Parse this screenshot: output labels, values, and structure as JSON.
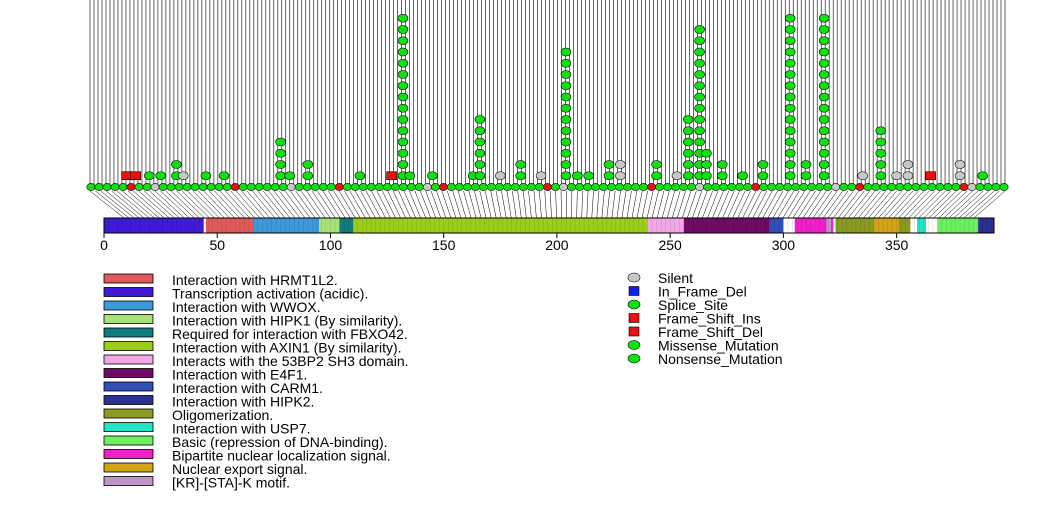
{
  "chart_data": {
    "type": "lollipop",
    "xlim": [
      0,
      393
    ],
    "x_ticks": [
      0,
      50,
      100,
      150,
      200,
      250,
      300,
      350
    ],
    "x_tick_labels": [
      "0",
      "50",
      "100",
      "150",
      "200",
      "250",
      "300",
      "350"
    ],
    "domains": [
      {
        "name": "Interaction with HRMT1L2.",
        "color": "#e05a5a",
        "start": 45,
        "end": 66
      },
      {
        "name": "Transcription activation (acidic).",
        "color": "#3f1bd6",
        "start": 0,
        "end": 44
      },
      {
        "name": "Interaction with WWOX.",
        "color": "#3d9ad8",
        "start": 66,
        "end": 95
      },
      {
        "name": "Interaction with HIPK1 (By similarity).",
        "color": "#a8e07a",
        "start": 95,
        "end": 104
      },
      {
        "name": "Required for interaction with FBXO42.",
        "color": "#127b7b",
        "start": 104,
        "end": 110
      },
      {
        "name": "Interaction with AXIN1 (By similarity).",
        "color": "#9ccd1a",
        "start": 110,
        "end": 240
      },
      {
        "name": "Interacts with the 53BP2 SH3 domain.",
        "color": "#f2a8e6",
        "start": 240,
        "end": 256
      },
      {
        "name": "Interaction with E4F1.",
        "color": "#700a64",
        "start": 256,
        "end": 294
      },
      {
        "name": "Interaction with CARM1.",
        "color": "#3050b8",
        "start": 294,
        "end": 300
      },
      {
        "name": "Interaction with HIPK2.",
        "color": "#2a3192",
        "start": 386,
        "end": 393
      },
      {
        "name": "Oligomerization.",
        "color": "#8a9a22",
        "start": 323,
        "end": 356
      },
      {
        "name": "Interaction with USP7.",
        "color": "#20e6c6",
        "start": 359,
        "end": 363
      },
      {
        "name": "Basic (repression of DNA-binding).",
        "color": "#6cf060",
        "start": 368,
        "end": 386
      },
      {
        "name": "Bipartite nuclear localization signal.",
        "color": "#f020c8",
        "start": 305,
        "end": 322
      },
      {
        "name": "Nuclear export signal.",
        "color": "#d4a418",
        "start": 340,
        "end": 351
      },
      {
        "name": "[KR]-[STA]-K motif.",
        "color": "#c094c8",
        "start": 319,
        "end": 321
      }
    ],
    "mutation_types": [
      {
        "name": "Silent",
        "color": "#c8c8c8",
        "shape": "circle"
      },
      {
        "name": "In_Frame_Del",
        "color": "#1020e8",
        "shape": "square"
      },
      {
        "name": "Splice_Site",
        "color": "#10e010",
        "shape": "circle"
      },
      {
        "name": "Frame_Shift_Ins",
        "color": "#e81010",
        "shape": "square"
      },
      {
        "name": "Frame_Shift_Del",
        "color": "#e81010",
        "shape": "square"
      },
      {
        "name": "Missense_Mutation",
        "color": "#10e010",
        "shape": "circle"
      },
      {
        "name": "Nonsense_Mutation",
        "color": "#10e010",
        "shape": "circle"
      }
    ],
    "mutations": [
      {
        "pos": 10,
        "count": 1,
        "type": "Frame_Shift_Del"
      },
      {
        "pos": 14,
        "count": 1,
        "type": "Frame_Shift_Del"
      },
      {
        "pos": 20,
        "count": 1,
        "type": "Missense_Mutation"
      },
      {
        "pos": 25,
        "count": 1,
        "type": "Missense_Mutation"
      },
      {
        "pos": 32,
        "count": 2,
        "type": "Missense_Mutation"
      },
      {
        "pos": 35,
        "count": 1,
        "type": "Silent"
      },
      {
        "pos": 45,
        "count": 1,
        "type": "Missense_Mutation"
      },
      {
        "pos": 53,
        "count": 1,
        "type": "Missense_Mutation"
      },
      {
        "pos": 78,
        "count": 4,
        "type": "Missense_Mutation"
      },
      {
        "pos": 82,
        "count": 1,
        "type": "Missense_Mutation"
      },
      {
        "pos": 90,
        "count": 2,
        "type": "Missense_Mutation"
      },
      {
        "pos": 113,
        "count": 1,
        "type": "Missense_Mutation"
      },
      {
        "pos": 127,
        "count": 1,
        "type": "Frame_Shift_Ins"
      },
      {
        "pos": 132,
        "count": 15,
        "type": "Missense_Mutation"
      },
      {
        "pos": 135,
        "count": 1,
        "type": "Missense_Mutation"
      },
      {
        "pos": 145,
        "count": 1,
        "type": "Missense_Mutation"
      },
      {
        "pos": 163,
        "count": 1,
        "type": "Missense_Mutation"
      },
      {
        "pos": 166,
        "count": 6,
        "type": "Missense_Mutation"
      },
      {
        "pos": 175,
        "count": 1,
        "type": "Silent"
      },
      {
        "pos": 184,
        "count": 2,
        "type": "Missense_Mutation"
      },
      {
        "pos": 193,
        "count": 1,
        "type": "Silent"
      },
      {
        "pos": 204,
        "count": 12,
        "type": "Missense_Mutation"
      },
      {
        "pos": 209,
        "count": 1,
        "type": "Missense_Mutation"
      },
      {
        "pos": 214,
        "count": 1,
        "type": "Missense_Mutation"
      },
      {
        "pos": 223,
        "count": 2,
        "type": "Missense_Mutation"
      },
      {
        "pos": 228,
        "count": 2,
        "type": "Silent"
      },
      {
        "pos": 244,
        "count": 2,
        "type": "Missense_Mutation"
      },
      {
        "pos": 253,
        "count": 1,
        "type": "Silent"
      },
      {
        "pos": 258,
        "count": 6,
        "type": "Missense_Mutation"
      },
      {
        "pos": 263,
        "count": 14,
        "type": "Missense_Mutation"
      },
      {
        "pos": 266,
        "count": 3,
        "type": "Missense_Mutation"
      },
      {
        "pos": 273,
        "count": 2,
        "type": "Missense_Mutation"
      },
      {
        "pos": 282,
        "count": 1,
        "type": "Missense_Mutation"
      },
      {
        "pos": 291,
        "count": 2,
        "type": "Missense_Mutation"
      },
      {
        "pos": 303,
        "count": 15,
        "type": "Missense_Mutation"
      },
      {
        "pos": 310,
        "count": 2,
        "type": "Missense_Mutation"
      },
      {
        "pos": 318,
        "count": 15,
        "type": "Missense_Mutation"
      },
      {
        "pos": 335,
        "count": 1,
        "type": "Silent"
      },
      {
        "pos": 343,
        "count": 5,
        "type": "Missense_Mutation"
      },
      {
        "pos": 350,
        "count": 1,
        "type": "Silent"
      },
      {
        "pos": 355,
        "count": 2,
        "type": "Silent"
      },
      {
        "pos": 365,
        "count": 1,
        "type": "Frame_Shift_Ins"
      },
      {
        "pos": 378,
        "count": 2,
        "type": "Silent"
      },
      {
        "pos": 388,
        "count": 1,
        "type": "Missense_Mutation"
      }
    ]
  }
}
